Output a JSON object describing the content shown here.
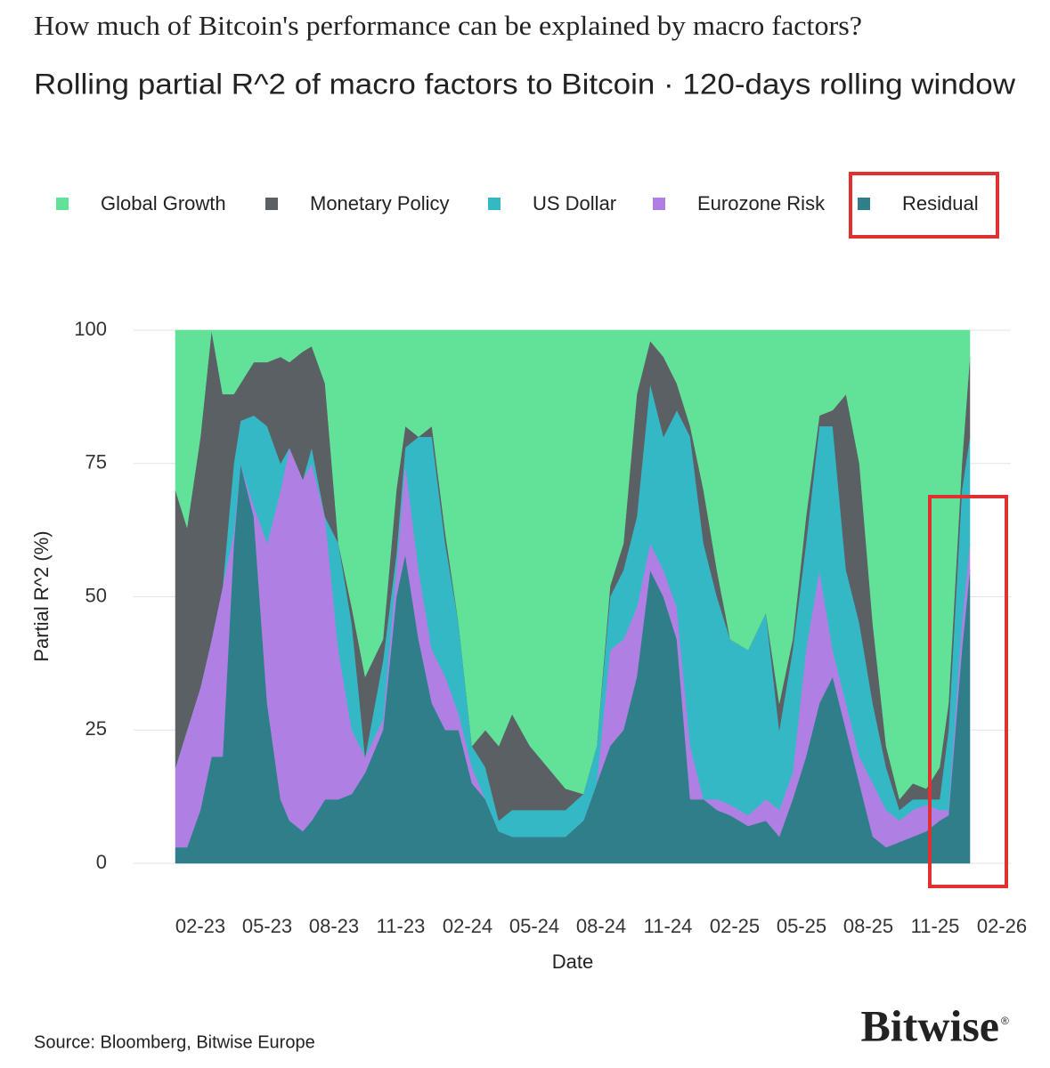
{
  "chart_data": {
    "type": "stacked_area",
    "title": "How much of Bitcoin's performance can be explained by macro factors?",
    "subtitle": "Rolling partial R^2 of macro factors to Bitcoin · 120-days rolling window",
    "x_label": "Date",
    "y_label": "Partial R^2 (%)",
    "source": "Source: Bloomberg, Bitwise Europe",
    "brand": "Bitwise",
    "brand_mark": "®",
    "xlim": [
      -1,
      38.4
    ],
    "ylim": [
      0,
      100
    ],
    "yticks": [
      0,
      25,
      50,
      75,
      100
    ],
    "xticks": [
      {
        "value": 2,
        "label": "02-23"
      },
      {
        "value": 5,
        "label": "05-23"
      },
      {
        "value": 8,
        "label": "08-23"
      },
      {
        "value": 11,
        "label": "11-23"
      },
      {
        "value": 14,
        "label": "02-24"
      },
      {
        "value": 17,
        "label": "05-24"
      },
      {
        "value": 20,
        "label": "08-24"
      },
      {
        "value": 23,
        "label": "11-24"
      },
      {
        "value": 26,
        "label": "02-25"
      },
      {
        "value": 29,
        "label": "05-25"
      },
      {
        "value": 32,
        "label": "08-25"
      },
      {
        "value": 35,
        "label": "11-25"
      },
      {
        "value": 38,
        "label": "02-26"
      }
    ],
    "grid": true,
    "x": [
      0.88,
      1.4,
      2,
      2.5,
      3,
      3.5,
      3.8,
      4.4,
      5,
      5.6,
      6,
      6.6,
      7,
      7.6,
      8.2,
      8.8,
      9.4,
      10.2,
      10.8,
      11.2,
      11.8,
      12.4,
      13,
      13.6,
      14.2,
      14.8,
      15.4,
      16,
      16.8,
      17.6,
      18.4,
      19.2,
      19.8,
      20.4,
      21,
      21.6,
      22.2,
      22.8,
      23.4,
      24,
      24.6,
      25.2,
      25.8,
      26.6,
      27.4,
      28,
      28.6,
      29.2,
      29.8,
      30.4,
      31,
      31.6,
      32.2,
      32.8,
      33.4,
      34,
      34.6,
      35.2,
      35.6,
      36.2,
      36.56
    ],
    "series": [
      {
        "name": "Global Growth",
        "color": "#62e298",
        "values": [
          30,
          37,
          20,
          0,
          12,
          12,
          10,
          6,
          6,
          5,
          6,
          4,
          3,
          10,
          40,
          52,
          65,
          58,
          30,
          18,
          20,
          18,
          38,
          55,
          78,
          75,
          78,
          72,
          78,
          82,
          86,
          87,
          78,
          48,
          40,
          12,
          2,
          5,
          10,
          18,
          30,
          45,
          58,
          60,
          53,
          70,
          58,
          35,
          16,
          15,
          12,
          25,
          55,
          78,
          88,
          85,
          86,
          82,
          70,
          25,
          5
        ]
      },
      {
        "name": "Monetary Policy",
        "color": "#5b6065",
        "values": [
          52,
          38,
          47,
          58,
          36,
          13,
          7,
          10,
          12,
          20,
          16,
          24,
          19,
          25,
          0,
          3,
          15,
          4,
          12,
          4,
          0,
          2,
          2,
          0,
          0,
          7,
          14,
          18,
          12,
          8,
          4,
          0,
          0,
          2,
          5,
          23,
          8,
          15,
          5,
          2,
          10,
          5,
          0,
          0,
          0,
          5,
          2,
          5,
          2,
          3,
          33,
          30,
          15,
          4,
          2,
          3,
          2,
          6,
          5,
          5,
          15
        ]
      },
      {
        "name": "US Dollar",
        "color": "#35b8c5",
        "values": [
          0,
          0,
          0,
          0,
          0,
          13,
          8,
          17,
          22,
          5,
          0,
          0,
          3,
          0,
          20,
          20,
          0,
          11,
          3,
          3,
          25,
          40,
          25,
          17,
          4,
          6,
          2,
          5,
          5,
          5,
          5,
          5,
          7,
          10,
          13,
          17,
          30,
          25,
          37,
          58,
          48,
          38,
          31,
          31,
          35,
          15,
          23,
          20,
          27,
          42,
          25,
          25,
          15,
          8,
          2,
          2,
          1,
          2,
          15,
          25,
          20
        ]
      },
      {
        "name": "Eurozone Risk",
        "color": "#b07fe3",
        "values": [
          15,
          22,
          23,
          22,
          32,
          2,
          0,
          2,
          30,
          58,
          70,
          66,
          67,
          53,
          28,
          12,
          3,
          2,
          5,
          17,
          13,
          10,
          10,
          3,
          3,
          0,
          0,
          0,
          0,
          0,
          0,
          0,
          0,
          18,
          17,
          13,
          5,
          5,
          6,
          10,
          0,
          2,
          2,
          2,
          4,
          5,
          5,
          20,
          25,
          5,
          5,
          5,
          10,
          7,
          4,
          5,
          5,
          2,
          1,
          5,
          5
        ]
      },
      {
        "name": "Residual",
        "color": "#2f7f8a",
        "values": [
          3,
          3,
          10,
          20,
          20,
          60,
          75,
          65,
          30,
          12,
          8,
          6,
          8,
          12,
          12,
          13,
          17,
          25,
          50,
          58,
          42,
          30,
          25,
          25,
          15,
          12,
          6,
          5,
          5,
          5,
          5,
          8,
          15,
          22,
          25,
          35,
          55,
          50,
          42,
          12,
          12,
          10,
          9,
          7,
          8,
          5,
          12,
          20,
          30,
          35,
          25,
          15,
          5,
          3,
          4,
          5,
          6,
          8,
          9,
          40,
          55
        ]
      }
    ]
  }
}
